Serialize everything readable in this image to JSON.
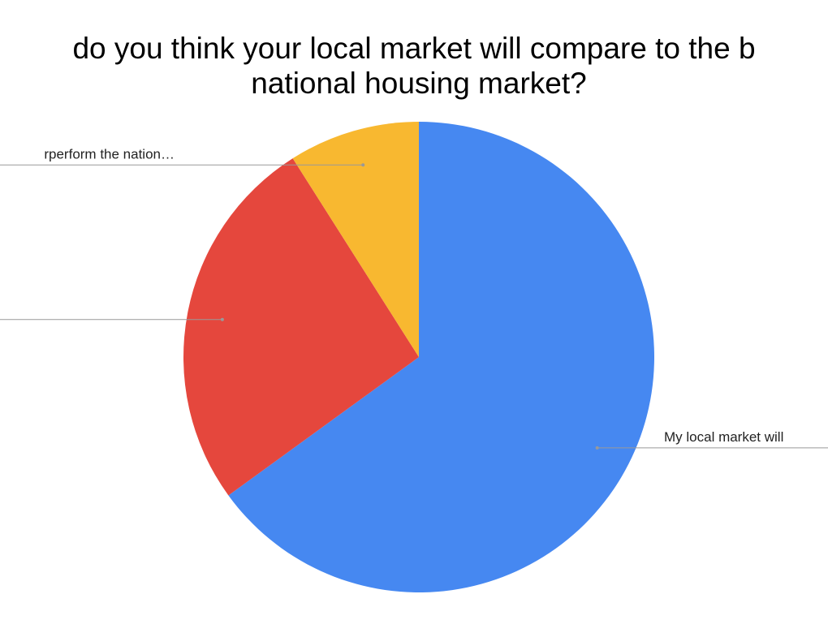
{
  "chart_data": {
    "type": "pie",
    "title": [
      "do you think your local market will compare to the b",
      "national housing market?"
    ],
    "categories": [
      "My local market will",
      null,
      "rperform the nation…"
    ],
    "values": [
      65,
      26,
      9
    ],
    "colors": [
      "#4688f1",
      "#e5473d",
      "#f8b830"
    ]
  }
}
